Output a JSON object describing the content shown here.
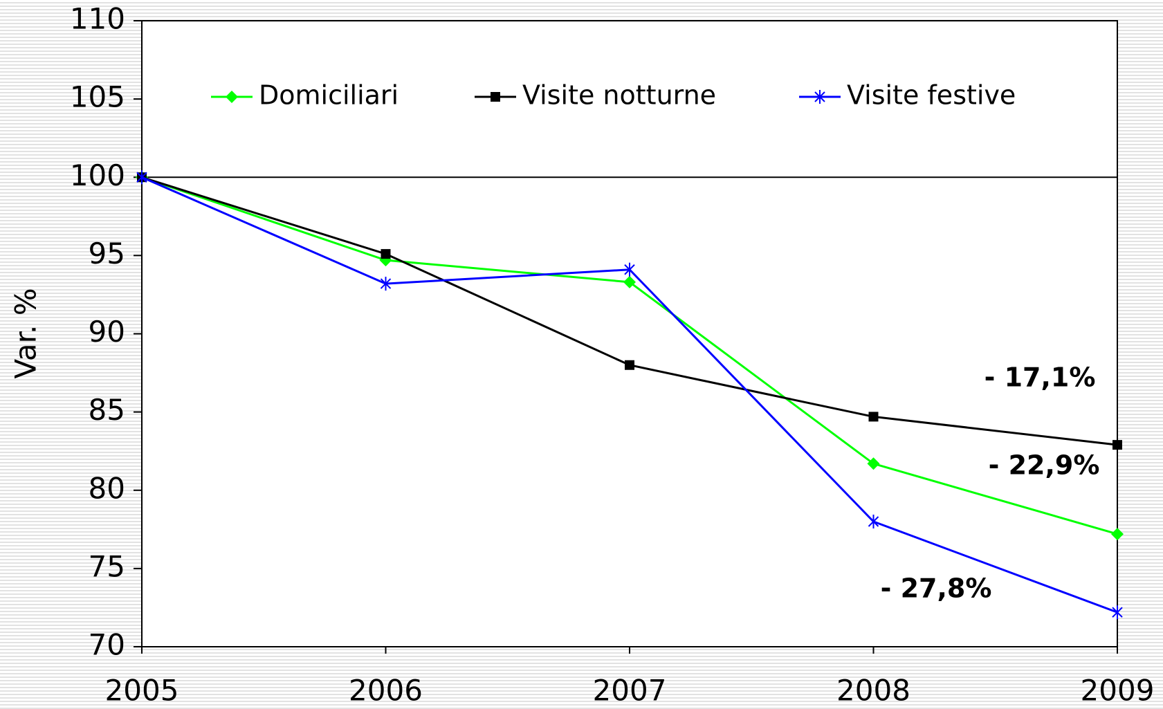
{
  "chart_data": {
    "type": "line",
    "y_label": "Var. %",
    "x": [
      2005,
      2006,
      2007,
      2008,
      2009
    ],
    "xlim": [
      2005,
      2009
    ],
    "xticks": [
      2005,
      2006,
      2007,
      2008,
      2009
    ],
    "ylim": [
      70,
      110
    ],
    "yticks": [
      70,
      75,
      80,
      85,
      90,
      95,
      100,
      105,
      110
    ],
    "reference_line": 100,
    "series": [
      {
        "name": "Domiciliari",
        "color": "#00ff00",
        "marker": "diamond",
        "values": [
          100,
          94.7,
          93.3,
          81.7,
          77.2
        ]
      },
      {
        "name": "Visite notturne",
        "color": "#000000",
        "marker": "square",
        "values": [
          100,
          95.1,
          88.0,
          84.7,
          82.9
        ]
      },
      {
        "name": "Visite festive",
        "color": "#0000ff",
        "marker": "asterisk",
        "values": [
          100,
          93.2,
          94.1,
          78.0,
          72.2
        ]
      }
    ],
    "annotations": [
      "- 17,1%",
      "- 22,9%",
      "- 27,8%"
    ]
  }
}
